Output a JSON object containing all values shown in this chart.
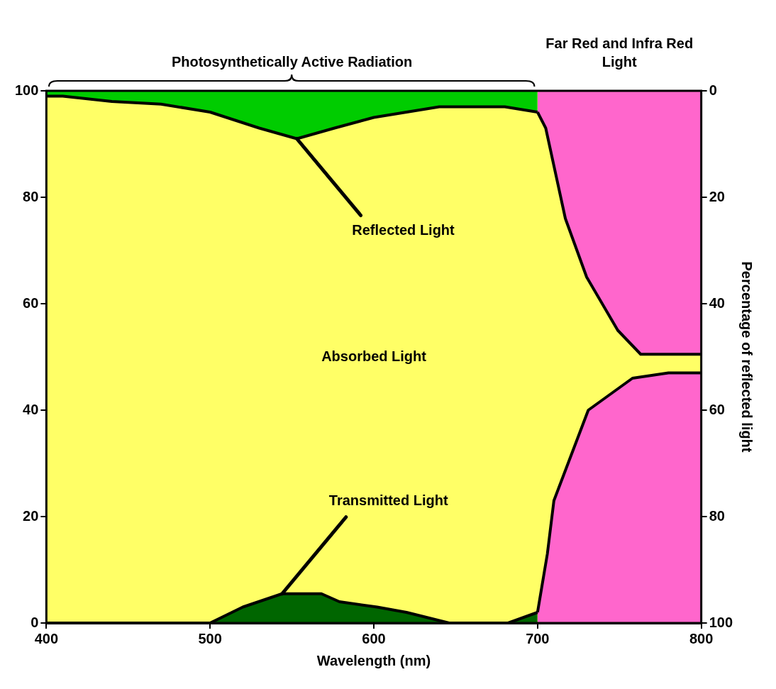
{
  "chart_data": {
    "type": "area",
    "xlabel": "Wavelength (nm)",
    "y2label": "Percentage of reflected light",
    "xlim": [
      400,
      800
    ],
    "xticks": [
      400,
      500,
      600,
      700,
      800
    ],
    "ylim": [
      0,
      100
    ],
    "yticks": [
      0,
      20,
      40,
      60,
      80,
      100
    ],
    "y2lim": [
      100,
      0
    ],
    "y2ticks": [
      0,
      20,
      40,
      60,
      80,
      100
    ],
    "series": [
      {
        "color": "#006600",
        "axis": "y",
        "x": [
          400,
          500,
          520,
          544,
          568,
          579,
          602,
          620,
          646,
          660,
          682,
          700
        ],
        "values": [
          0,
          0,
          3,
          5.5,
          5.5,
          4,
          3,
          2,
          0,
          0,
          0,
          2
        ]
      },
      {
        "color": "#ff66cc",
        "axis": "y",
        "x": [
          700,
          706,
          710,
          731,
          758,
          780,
          800
        ],
        "values": [
          2,
          13,
          23,
          40,
          46,
          47,
          47
        ]
      },
      {
        "color": "#00cc00",
        "axis": "y2",
        "x": [
          400,
          410,
          440,
          470,
          500,
          530,
          553,
          576,
          600,
          640,
          680,
          700
        ],
        "values": [
          1,
          1,
          2,
          2.5,
          4,
          7,
          9,
          7,
          5,
          3,
          3,
          4
        ]
      },
      {
        "color": "#ff66cc",
        "axis": "y2",
        "x": [
          700,
          705,
          717,
          730,
          749,
          763,
          780,
          800
        ],
        "values": [
          4,
          7,
          24,
          35,
          45,
          49.5,
          49.5,
          49.5
        ]
      }
    ],
    "bands": [
      {
        "axis": "x",
        "from": 400,
        "to": 800,
        "color": "#ffff66"
      }
    ],
    "annotations": [
      "Photosynthetically Active Radiation",
      "Far Red and Infra Red Light",
      {
        "text": "Reflected Light",
        "x": 553,
        "y": 91
      },
      "Absorbed Light",
      {
        "text": "Transmitted Light",
        "x": 544,
        "y": 5.5
      }
    ]
  }
}
